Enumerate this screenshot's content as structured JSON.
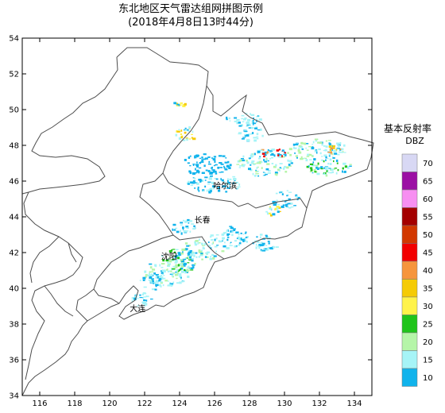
{
  "title": "东北地区天气雷达组网拼图示例",
  "subtitle": "(2018年4月8日13时44分)",
  "map": {
    "lon_range": [
      115,
      135
    ],
    "lat_range": [
      34,
      54
    ],
    "lon_ticks": [
      116,
      118,
      120,
      122,
      124,
      126,
      128,
      130,
      132,
      134
    ],
    "lat_ticks": [
      34,
      36,
      38,
      40,
      42,
      44,
      46,
      48,
      50,
      52,
      54
    ],
    "cities": [
      {
        "name": "哈尔滨",
        "lon": 126.6,
        "lat": 45.75
      },
      {
        "name": "长春",
        "lon": 125.3,
        "lat": 43.85
      },
      {
        "name": "沈阳",
        "lon": 123.4,
        "lat": 41.8
      },
      {
        "name": "大连",
        "lon": 121.6,
        "lat": 38.9
      }
    ],
    "echo_regions": [
      {
        "lon": 123.3,
        "lat": 41.0,
        "rlon": 1.4,
        "rlat": 0.9,
        "level": 20
      },
      {
        "lon": 124.0,
        "lat": 41.6,
        "rlon": 1.0,
        "rlat": 0.7,
        "level": 25
      },
      {
        "lon": 122.4,
        "lat": 40.4,
        "rlon": 0.7,
        "rlat": 0.5,
        "level": 15
      },
      {
        "lon": 121.8,
        "lat": 39.4,
        "rlon": 0.6,
        "rlat": 0.4,
        "level": 15
      },
      {
        "lon": 125.2,
        "lat": 42.2,
        "rlon": 1.2,
        "rlat": 0.6,
        "level": 20
      },
      {
        "lon": 126.8,
        "lat": 42.9,
        "rlon": 1.1,
        "rlat": 0.6,
        "level": 15
      },
      {
        "lon": 124.2,
        "lat": 43.5,
        "rlon": 0.7,
        "rlat": 0.4,
        "level": 15
      },
      {
        "lon": 126.0,
        "lat": 45.9,
        "rlon": 1.6,
        "rlat": 0.5,
        "level": 15
      },
      {
        "lon": 125.5,
        "lat": 47.0,
        "rlon": 1.5,
        "rlat": 0.6,
        "level": 10
      },
      {
        "lon": 128.8,
        "lat": 47.0,
        "rlon": 1.6,
        "rlat": 0.7,
        "level": 20
      },
      {
        "lon": 129.2,
        "lat": 47.6,
        "rlon": 1.0,
        "rlat": 0.3,
        "level": 45
      },
      {
        "lon": 131.8,
        "lat": 47.8,
        "rlon": 1.8,
        "rlat": 0.6,
        "level": 20
      },
      {
        "lon": 132.5,
        "lat": 46.8,
        "rlon": 1.3,
        "rlat": 0.5,
        "level": 25
      },
      {
        "lon": 132.8,
        "lat": 47.8,
        "rlon": 0.5,
        "rlat": 0.3,
        "level": 40
      },
      {
        "lon": 124.3,
        "lat": 48.7,
        "rlon": 0.6,
        "rlat": 0.4,
        "level": 35
      },
      {
        "lon": 130.0,
        "lat": 45.0,
        "rlon": 0.8,
        "rlat": 0.5,
        "level": 15
      },
      {
        "lon": 129.3,
        "lat": 44.4,
        "rlon": 0.4,
        "rlat": 0.3,
        "level": 35
      },
      {
        "lon": 127.6,
        "lat": 49.5,
        "rlon": 1.0,
        "rlat": 0.4,
        "level": 15
      },
      {
        "lon": 128.0,
        "lat": 48.7,
        "rlon": 0.8,
        "rlat": 0.4,
        "level": 15
      },
      {
        "lon": 123.9,
        "lat": 50.4,
        "rlon": 0.4,
        "rlat": 0.2,
        "level": 35
      },
      {
        "lon": 128.8,
        "lat": 42.6,
        "rlon": 0.8,
        "rlat": 0.5,
        "level": 15
      }
    ]
  },
  "legend": {
    "title": "基本反射率",
    "unit": "DBZ",
    "levels": [
      {
        "label": "70",
        "color": "#d8d8f4"
      },
      {
        "label": "65",
        "color": "#9b0fa4"
      },
      {
        "label": "60",
        "color": "#f78ff1"
      },
      {
        "label": "55",
        "color": "#a40000"
      },
      {
        "label": "50",
        "color": "#d23800"
      },
      {
        "label": "45",
        "color": "#f20000"
      },
      {
        "label": "40",
        "color": "#f6953c"
      },
      {
        "label": "35",
        "color": "#f5cb05"
      },
      {
        "label": "30",
        "color": "#fff34a"
      },
      {
        "label": "25",
        "color": "#1fc41a"
      },
      {
        "label": "20",
        "color": "#b5f5a8"
      },
      {
        "label": "15",
        "color": "#a6f4f7"
      },
      {
        "label": "10",
        "color": "#10b3ec"
      }
    ]
  },
  "colors": {
    "border": "#4d4d4d",
    "frame": "#000000"
  }
}
